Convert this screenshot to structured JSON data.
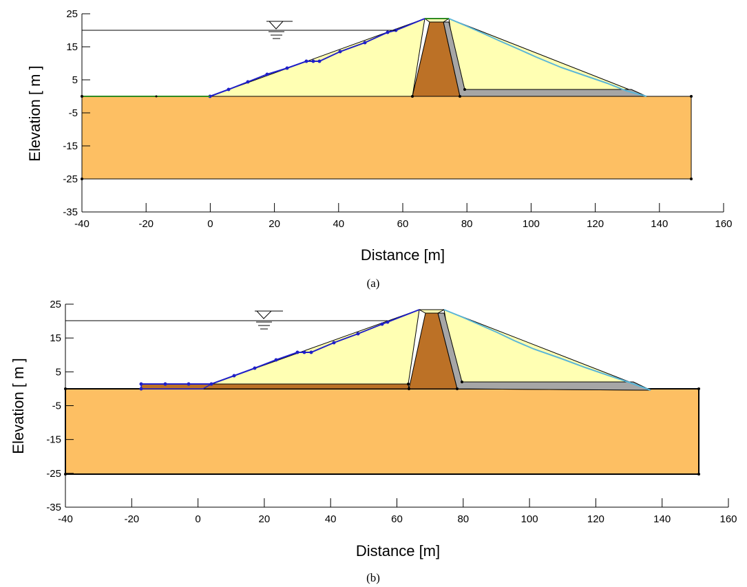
{
  "panels": [
    {
      "caption": "(a)",
      "xlabel": "Distance [m]",
      "ylabel": "Elevation [ m ]",
      "x_ticks": [
        -40,
        -20,
        0,
        20,
        40,
        60,
        80,
        100,
        120,
        140,
        160
      ],
      "y_ticks": [
        25,
        15,
        5,
        -5,
        -15,
        -25,
        -35
      ],
      "x_range": [
        -40,
        160
      ],
      "y_range": [
        -35,
        25
      ],
      "water_level": 20,
      "colors": {
        "foundation": "#FDBF63",
        "shell": "#FFFFB3",
        "core": "#BC7126",
        "filter": "#A6A6A6",
        "upstream_face": "#1F1FC8",
        "downstream_face": "#5AB6D8",
        "ground_line": "#2E8B22"
      }
    },
    {
      "caption": "(b)",
      "xlabel": "Distance [m]",
      "ylabel": "Elevation [ m ]",
      "x_ticks": [
        -40,
        -20,
        0,
        20,
        40,
        60,
        80,
        100,
        120,
        140,
        160
      ],
      "y_ticks": [
        25,
        15,
        5,
        -5,
        -15,
        -25,
        -35
      ],
      "x_range": [
        -40,
        160
      ],
      "y_range": [
        -35,
        25
      ],
      "water_level": 20,
      "colors": {
        "foundation": "#FDBF63",
        "shell": "#FFFFB3",
        "core": "#BC7126",
        "filter": "#A6A6A6",
        "upstream_face": "#1F1FC8",
        "downstream_face": "#5AB6D8",
        "berm": "#BC7126"
      }
    }
  ]
}
